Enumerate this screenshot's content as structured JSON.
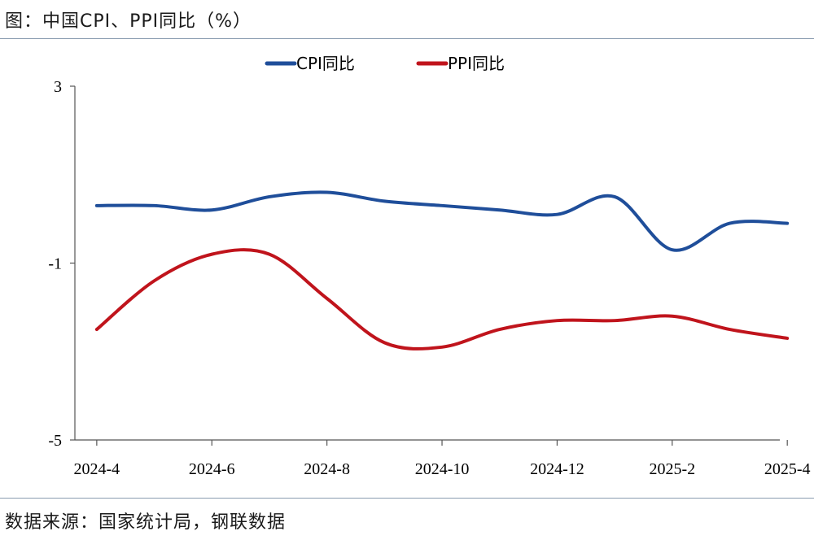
{
  "title": "图：中国CPI、PPI同比（%）",
  "source": "数据来源：国家统计局，钢联数据",
  "chart_data": {
    "type": "line",
    "x": [
      "2024-4",
      "2024-5",
      "2024-6",
      "2024-7",
      "2024-8",
      "2024-9",
      "2024-10",
      "2024-11",
      "2024-12",
      "2025-1",
      "2025-2",
      "2025-3",
      "2025-4"
    ],
    "x_tick_labels": [
      "2024-4",
      "2024-6",
      "2024-8",
      "2024-10",
      "2024-12",
      "2025-2",
      "2025-4"
    ],
    "y_tick_labels": [
      "3",
      "-1",
      "-5"
    ],
    "ylim": [
      -5,
      3
    ],
    "legend_position": "top-center",
    "series": [
      {
        "name": "CPI同比",
        "color": "#1f4e9a",
        "values": [
          0.3,
          0.3,
          0.2,
          0.5,
          0.6,
          0.4,
          0.3,
          0.2,
          0.1,
          0.5,
          -0.7,
          -0.1,
          -0.1
        ]
      },
      {
        "name": "PPI同比",
        "color": "#c0141c",
        "values": [
          -2.5,
          -1.4,
          -0.8,
          -0.8,
          -1.8,
          -2.8,
          -2.9,
          -2.5,
          -2.3,
          -2.3,
          -2.2,
          -2.5,
          -2.7
        ]
      }
    ]
  }
}
